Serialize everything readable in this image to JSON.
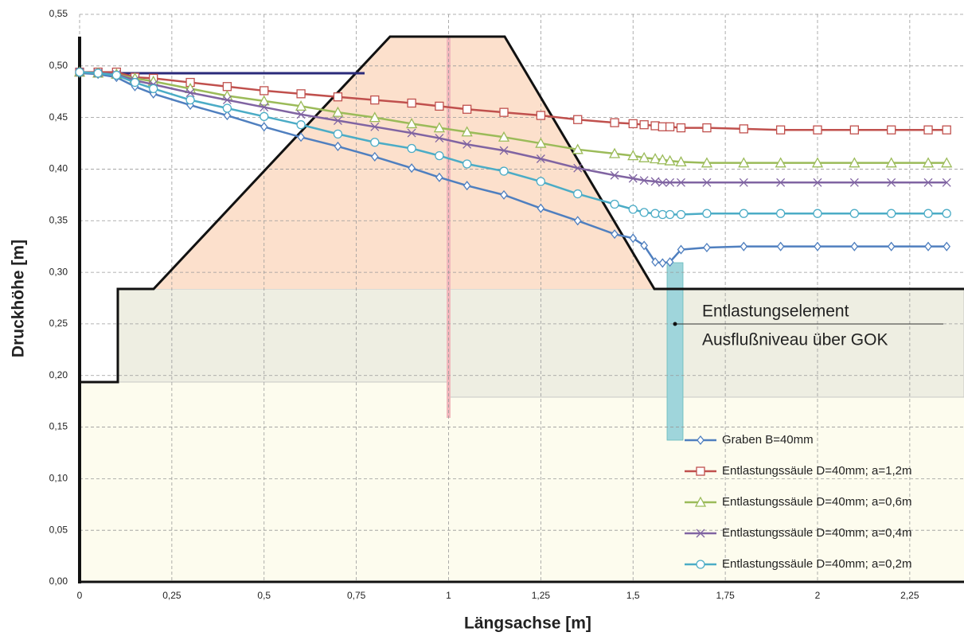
{
  "chart_data": {
    "type": "line",
    "y_label": "Druckhöhe  [m]",
    "x_label": "Längsachse [m]",
    "annotations": [
      "Entlastungselement",
      "Ausflußniveau über GOK"
    ],
    "xlim": [
      0,
      2.397
    ],
    "ylim": [
      0,
      0.55
    ],
    "xticks": [
      0,
      {
        "value": 0.25,
        "label": "0,25"
      },
      {
        "value": 0.5,
        "label": "0,5"
      },
      {
        "value": 0.75,
        "label": "0,75"
      },
      1,
      {
        "value": 1.25,
        "label": "1,25"
      },
      {
        "value": 1.5,
        "label": "1,5"
      },
      {
        "value": 1.75,
        "label": "1,75"
      },
      2,
      {
        "value": 2.25,
        "label": "2,25"
      }
    ],
    "yticks": [
      {
        "value": 0,
        "label": "0,00"
      },
      {
        "value": 0.05,
        "label": "0,05"
      },
      {
        "value": 0.1,
        "label": "0,10"
      },
      {
        "value": 0.15,
        "label": "0,15"
      },
      {
        "value": 0.2,
        "label": "0,20"
      },
      {
        "value": 0.25,
        "label": "0,25"
      },
      {
        "value": 0.3,
        "label": "0,30"
      },
      {
        "value": 0.35,
        "label": "0,35"
      },
      {
        "value": 0.4,
        "label": "0,40"
      },
      {
        "value": 0.45,
        "label": "0,45"
      },
      {
        "value": 0.5,
        "label": "0,50"
      },
      {
        "value": 0.55,
        "label": "0,55"
      }
    ],
    "grid": true,
    "x": [
      0,
      0.05,
      0.1,
      0.15,
      0.2,
      0.3,
      0.4,
      0.5,
      0.6,
      0.7,
      0.8,
      0.9,
      0.975,
      1.05,
      1.15,
      1.25,
      1.35,
      1.45,
      1.5,
      1.53,
      1.56,
      1.58,
      1.6,
      1.63,
      1.7,
      1.8,
      1.9,
      2,
      2.1,
      2.2,
      2.3,
      2.35
    ],
    "series": [
      {
        "name": "Graben    B=40mm",
        "color": "#4f7fbf",
        "marker": "diamond",
        "values": [
          0.493,
          0.492,
          0.489,
          0.48,
          0.473,
          0.462,
          0.452,
          0.441,
          0.431,
          0.422,
          0.412,
          0.401,
          0.392,
          0.384,
          0.375,
          0.362,
          0.35,
          0.337,
          0.333,
          0.326,
          0.31,
          0.309,
          0.31,
          0.322,
          0.324,
          0.325,
          0.325,
          0.325,
          0.325,
          0.325,
          0.325,
          0.325
        ]
      },
      {
        "name": "Entlastungssäule D=40mm; a=1,2m",
        "color": "#c0504d",
        "marker": "square",
        "values": [
          0.494,
          0.494,
          0.494,
          0.489,
          0.488,
          0.484,
          0.48,
          0.476,
          0.473,
          0.47,
          0.467,
          0.464,
          0.461,
          0.458,
          0.455,
          0.452,
          0.448,
          0.445,
          0.444,
          0.443,
          0.442,
          0.441,
          0.441,
          0.44,
          0.44,
          0.439,
          0.438,
          0.438,
          0.438,
          0.438,
          0.438,
          0.438
        ]
      },
      {
        "name": "Entlastungssäule D=40mm; a=0,6m",
        "color": "#9bbb59",
        "marker": "triangle",
        "values": [
          0.494,
          0.493,
          0.492,
          0.488,
          0.485,
          0.478,
          0.471,
          0.466,
          0.461,
          0.455,
          0.45,
          0.444,
          0.44,
          0.436,
          0.431,
          0.425,
          0.419,
          0.415,
          0.413,
          0.411,
          0.41,
          0.409,
          0.408,
          0.407,
          0.406,
          0.406,
          0.406,
          0.406,
          0.406,
          0.406,
          0.406,
          0.406
        ]
      },
      {
        "name": "Entlastungssäule D=40mm; a=0,4m",
        "color": "#8064a2",
        "marker": "cross",
        "values": [
          0.494,
          0.493,
          0.492,
          0.486,
          0.482,
          0.474,
          0.467,
          0.46,
          0.453,
          0.447,
          0.441,
          0.435,
          0.43,
          0.424,
          0.418,
          0.41,
          0.401,
          0.394,
          0.391,
          0.389,
          0.388,
          0.387,
          0.387,
          0.387,
          0.387,
          0.387,
          0.387,
          0.387,
          0.387,
          0.387,
          0.387,
          0.387
        ]
      },
      {
        "name": "Entlastungssäule D=40mm; a=0,2m",
        "color": "#4bacc6",
        "marker": "circle",
        "values": [
          0.494,
          0.493,
          0.491,
          0.484,
          0.478,
          0.467,
          0.459,
          0.451,
          0.443,
          0.434,
          0.426,
          0.42,
          0.413,
          0.405,
          0.398,
          0.388,
          0.376,
          0.366,
          0.361,
          0.358,
          0.357,
          0.356,
          0.356,
          0.356,
          0.357,
          0.357,
          0.357,
          0.357,
          0.357,
          0.357,
          0.357,
          0.357
        ]
      }
    ]
  }
}
